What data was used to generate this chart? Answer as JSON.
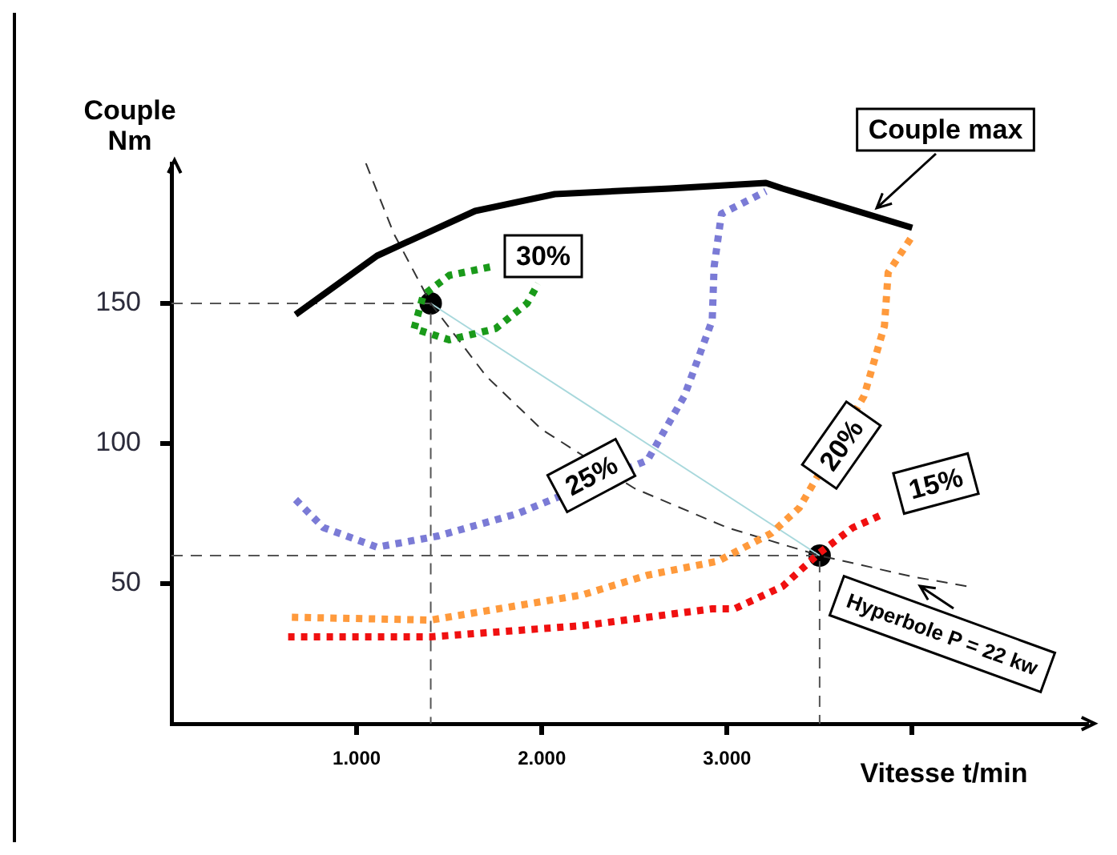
{
  "chart_data": {
    "type": "line",
    "xlabel": "Vitesse t/min",
    "ylabel": "Couple Nm",
    "xlim": [
      0,
      4950
    ],
    "ylim": [
      0,
      200
    ],
    "xticks": [
      {
        "value": 1000,
        "label": "1.000"
      },
      {
        "value": 2000,
        "label": "2.000"
      },
      {
        "value": 3000,
        "label": "3.000"
      },
      {
        "value": 4000,
        "label": null
      }
    ],
    "yticks": [
      50,
      100,
      150
    ],
    "grid": false,
    "legend": false,
    "marker": "none",
    "series": [
      {
        "name": "Couple max",
        "color": "#000000",
        "line_style": "solid",
        "x": [
          670,
          1110,
          1640,
          2070,
          2690,
          3210,
          3300,
          4000
        ],
        "values": [
          146,
          167,
          183,
          189,
          191,
          193,
          191,
          177
        ]
      },
      {
        "name": "30%",
        "color": "#1a9a1a",
        "line_style": "dotted",
        "x": [
          1720,
          1500,
          1360,
          1310,
          1500,
          1750,
          1920,
          1980
        ],
        "values": [
          163,
          160,
          153,
          141,
          137,
          141,
          150,
          157
        ]
      },
      {
        "name": "25%",
        "color": "#7b7bd6",
        "line_style": "dotted",
        "x": [
          670,
          820,
          1110,
          1440,
          1870,
          2570,
          2770,
          2920,
          2930,
          2970,
          3210
        ],
        "values": [
          80,
          70,
          63,
          67,
          75,
          94,
          117,
          144,
          163,
          182,
          190
        ]
      },
      {
        "name": "20%",
        "color": "#ff9a3c",
        "line_style": "dotted",
        "x": [
          650,
          1400,
          2220,
          2570,
          2950,
          3240,
          3390,
          3740,
          3850,
          3870,
          4000
        ],
        "values": [
          38,
          37,
          46,
          53,
          58,
          68,
          77,
          117,
          142,
          161,
          174
        ]
      },
      {
        "name": "15%",
        "color": "#f01010",
        "line_style": "dotted",
        "x": [
          630,
          1400,
          2220,
          2920,
          3040,
          3300,
          3450,
          3500,
          3680,
          3850
        ],
        "values": [
          31,
          31,
          35,
          41,
          41,
          49,
          58,
          61,
          70,
          75
        ]
      },
      {
        "name": "Hyperbole P = 22 kw",
        "color": "#333333",
        "line_style": "dashed",
        "x": [
          1050,
          1200,
          1400,
          1700,
          2000,
          2500,
          3000,
          3500,
          4000,
          4300
        ],
        "values": [
          200,
          175,
          150,
          124,
          105,
          84,
          70,
          60,
          52.5,
          49
        ]
      },
      {
        "color": "#a8d8dc",
        "line_style": "solid",
        "x": [
          1400,
          3500
        ],
        "values": [
          150,
          60
        ]
      },
      {
        "color": "#555555",
        "line_style": "dashed",
        "x": [
          0,
          1400,
          1400
        ],
        "values": [
          150,
          150,
          0
        ]
      },
      {
        "color": "#555555",
        "line_style": "dashed",
        "x": [
          0,
          3500,
          3500
        ],
        "values": [
          60,
          60,
          0
        ]
      },
      {
        "type": "scatter",
        "color": "#000000",
        "marker": "circle",
        "x": [
          1400,
          3500
        ],
        "values": [
          150,
          60
        ]
      }
    ]
  }
}
